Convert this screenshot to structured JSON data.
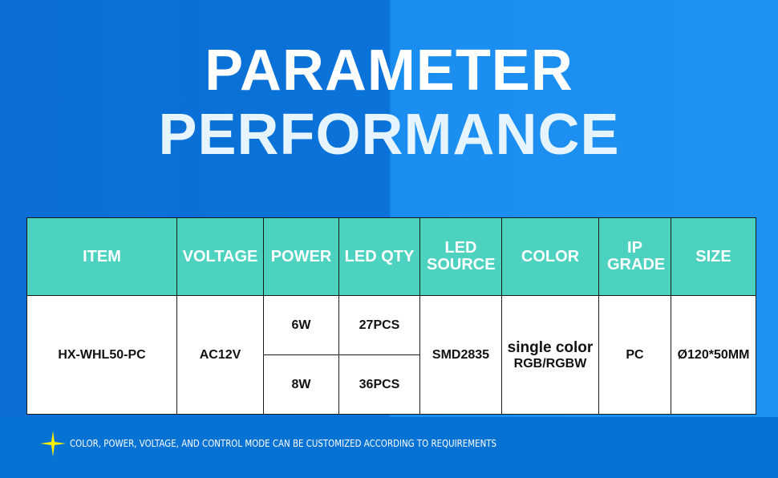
{
  "title": {
    "line1": "PARAMETER",
    "line2": "PERFORMANCE"
  },
  "table": {
    "headers": [
      "ITEM",
      "VOLTAGE",
      "POWER",
      "LED QTY",
      "LED SOURCE",
      "COLOR",
      "IP GRADE",
      "SIZE"
    ],
    "item": "HX-WHL50-PC",
    "voltage": "AC12V",
    "rows": [
      {
        "power": "6W",
        "qty": "27PCS"
      },
      {
        "power": "8W",
        "qty": "36PCS"
      }
    ],
    "source": "SMD2835",
    "color_line1": "single color",
    "color_line2": "RGB/RGBW",
    "ip": "PC",
    "size": "Ø120*50MM"
  },
  "note": "COLOR, POWER, VOLTAGE, AND CONTROL MODE CAN BE CUSTOMIZED ACCORDING TO REQUIREMENTS",
  "colors": {
    "header": "#4dd2c0",
    "star": "#ffee00"
  }
}
